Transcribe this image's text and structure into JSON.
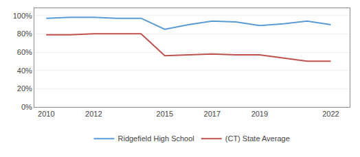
{
  "chart_data": {
    "type": "line",
    "series": [
      {
        "name": "Ridgefield High School",
        "color": "#5b9bd5",
        "x": [
          2010,
          2011,
          2012,
          2013,
          2014,
          2015,
          2016,
          2017,
          2018,
          2019,
          2020,
          2021,
          2022
        ],
        "values": [
          0.97,
          0.98,
          0.98,
          0.97,
          0.97,
          0.85,
          0.9,
          0.94,
          0.93,
          0.89,
          0.91,
          0.94,
          0.9
        ]
      },
      {
        "name": "(CT) State Average",
        "color": "#c0504d",
        "x": [
          2010,
          2011,
          2012,
          2013,
          2014,
          2015,
          2016,
          2017,
          2018,
          2019,
          2021,
          2022
        ],
        "values": [
          0.79,
          0.79,
          0.8,
          0.8,
          0.8,
          0.56,
          0.57,
          0.58,
          0.57,
          0.57,
          0.5,
          0.5
        ]
      }
    ],
    "xlim": [
      2009.5,
      2022.8
    ],
    "xticks": [
      2010,
      2012,
      2015,
      2017,
      2019,
      2022
    ],
    "ylim": [
      0.0,
      1.08
    ],
    "yticks": [
      {
        "value": 0.0,
        "label": "0%"
      },
      {
        "value": 0.2,
        "label": "20%"
      },
      {
        "value": 0.4,
        "label": "40%"
      },
      {
        "value": 0.6,
        "label": "60%"
      },
      {
        "value": 0.8,
        "label": "80%"
      },
      {
        "value": 1.0,
        "label": "100%"
      }
    ],
    "grid": "y",
    "legend": "bottom"
  }
}
